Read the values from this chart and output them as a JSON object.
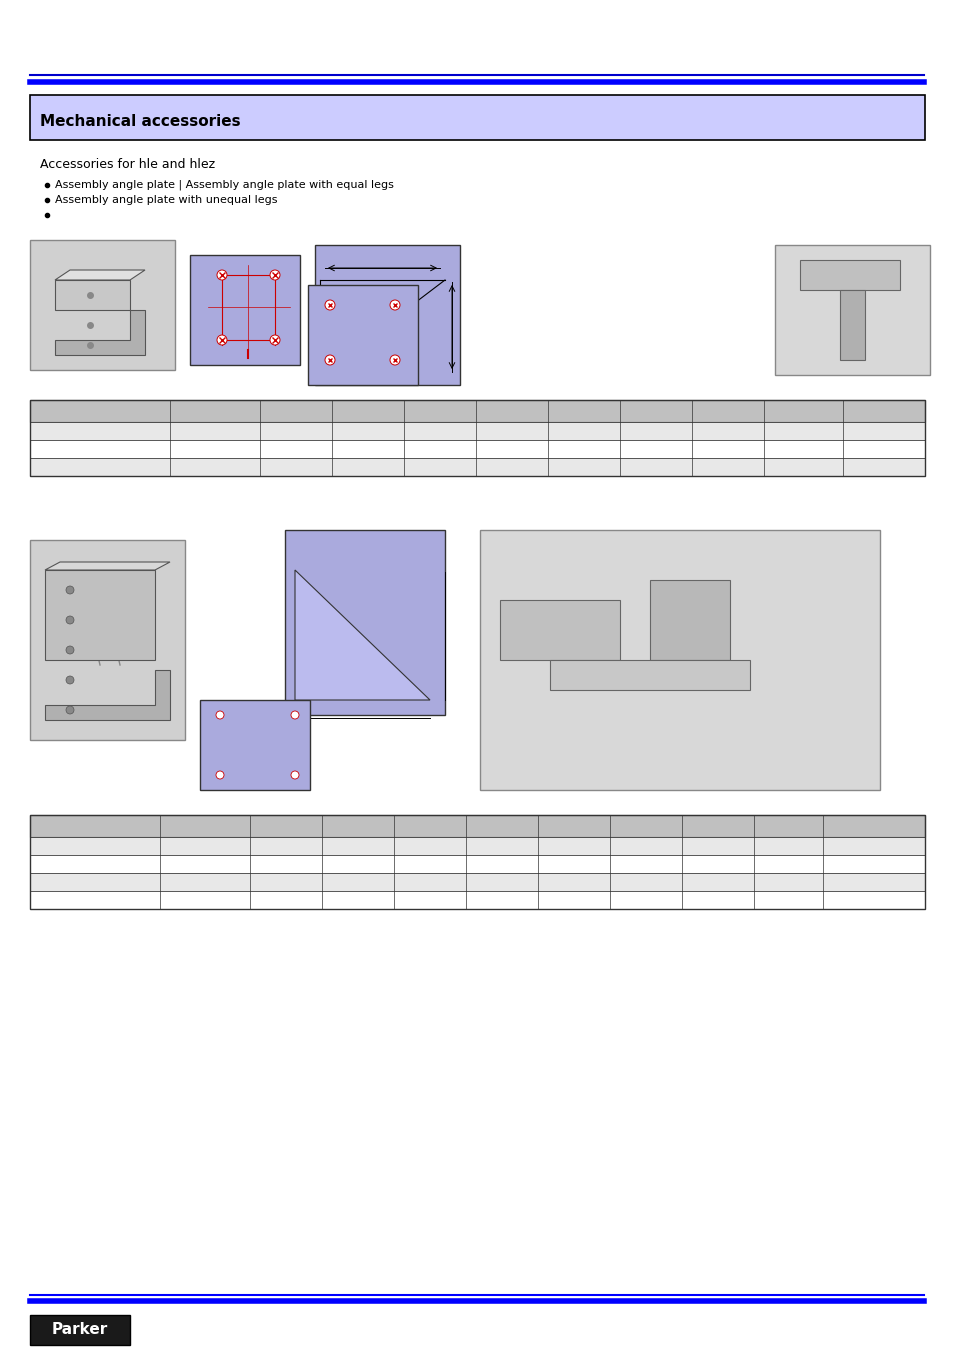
{
  "page_bg": "#ffffff",
  "top_line1_color": "#0000cc",
  "top_line2_color": "#0000ff",
  "header_box_color": "#ccccff",
  "header_box_border": "#000000",
  "header_text": "Mechanical accessories",
  "section1_title": "Accessories for hle and hlez",
  "bullet_items": [
    "Assembly angle plate | Assembly angle plate with equal legs",
    "Assembly angle plate with unequal legs",
    ""
  ],
  "table1_header_bg": "#c0c0c0",
  "table1_row_bg": [
    "#e8e8e8",
    "#ffffff",
    "#e8e8e8"
  ],
  "table2_header_bg": "#c0c0c0",
  "table2_row_bg": [
    "#e8e8e8",
    "#ffffff",
    "#e8e8e8",
    "#e8e8e8"
  ],
  "footer_line_color": "#0000ff",
  "parker_box_bg": "#1a1a1a",
  "parker_text_color": "#ffffff",
  "table1_cols": 10,
  "table1_rows": 4,
  "table2_cols": 10,
  "table2_rows": 5
}
